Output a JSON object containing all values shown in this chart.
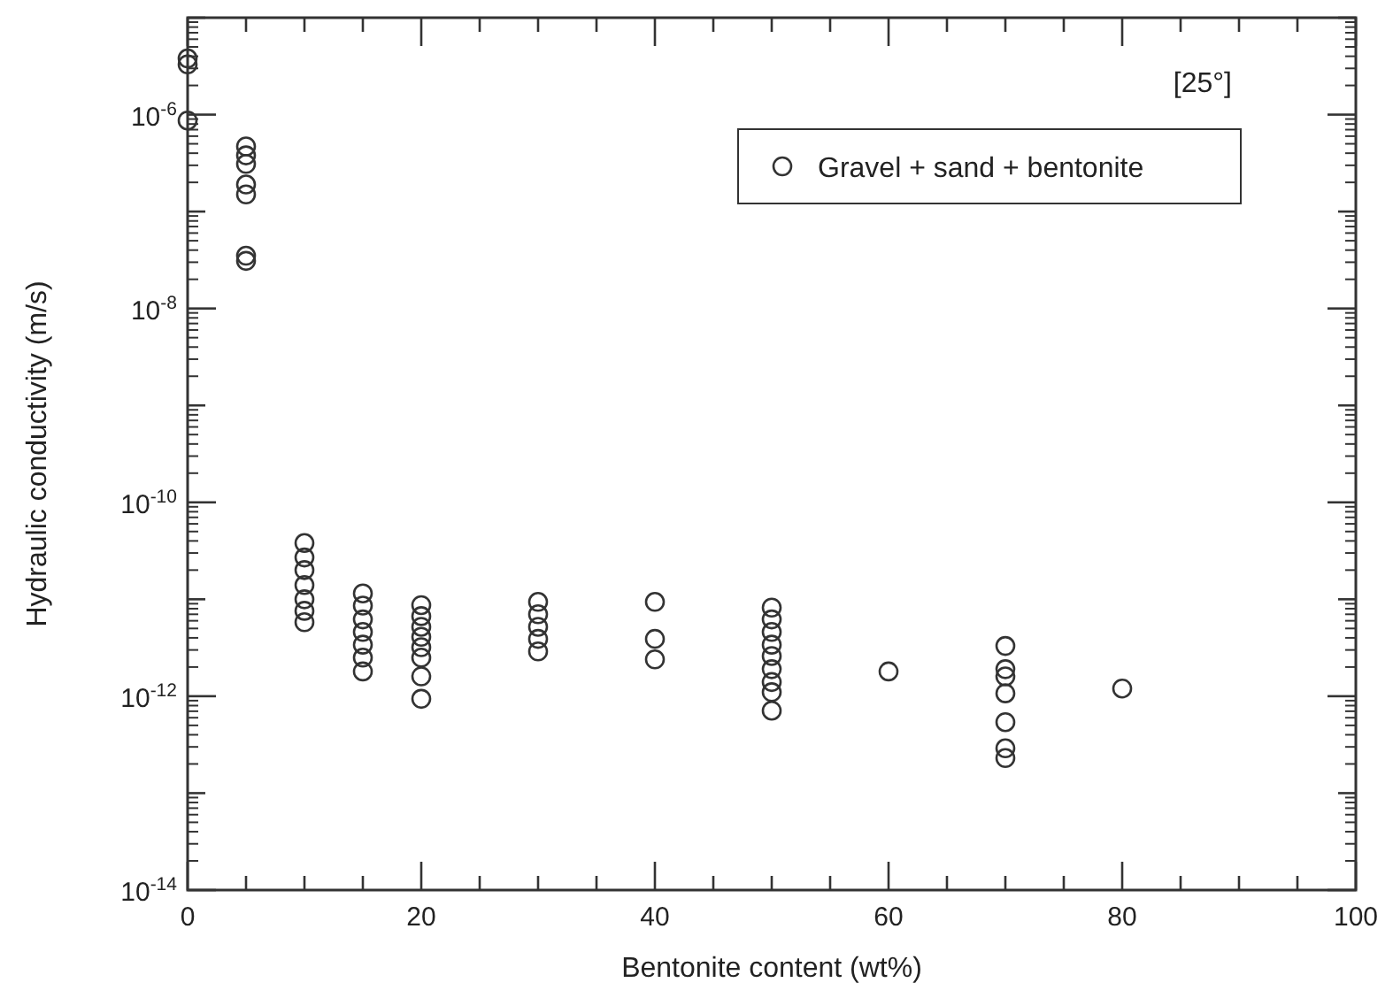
{
  "chart_data": {
    "type": "scatter",
    "xlabel": "Bentonite content (wt%)",
    "ylabel": "Hydraulic conductivity (m/s)",
    "annotations": [
      "[25°]"
    ],
    "log": "y",
    "grid": false,
    "legend": "top right",
    "marker": "circle",
    "xlim": [
      0,
      100
    ],
    "xticks": [
      0,
      {
        "value": 5,
        "label": null
      },
      {
        "value": 10,
        "label": null
      },
      {
        "value": 15,
        "label": null
      },
      20,
      {
        "value": 25,
        "label": null
      },
      {
        "value": 30,
        "label": null
      },
      {
        "value": 35,
        "label": null
      },
      40,
      {
        "value": 45,
        "label": null
      },
      {
        "value": 50,
        "label": null
      },
      {
        "value": 55,
        "label": null
      },
      60,
      {
        "value": 65,
        "label": null
      },
      {
        "value": 70,
        "label": null
      },
      {
        "value": 75,
        "label": null
      },
      80,
      {
        "value": 85,
        "label": null
      },
      {
        "value": 90,
        "label": null
      },
      {
        "value": 95,
        "label": null
      },
      100
    ],
    "ylim": [
      1e-14,
      1e-05
    ],
    "yticks": [
      {
        "value": 1e-14,
        "label": "10$^{-14}$"
      },
      {
        "value": 1e-13,
        "label": null
      },
      {
        "value": 1e-12,
        "label": "10$^{-12}$"
      },
      {
        "value": 1e-11,
        "label": null
      },
      {
        "value": 1e-10,
        "label": "10$^{-10}$"
      },
      {
        "value": 1e-09,
        "label": null
      },
      {
        "value": 1e-08,
        "label": "10$^{-8}$"
      },
      {
        "value": 1e-07,
        "label": null
      },
      {
        "value": 1e-06,
        "label": "10$^{-6}$"
      },
      {
        "value": 1e-05,
        "label": null
      }
    ],
    "series": [
      {
        "name": "Gravel + sand + bentonite",
        "color": "#333333",
        "x": [
          0,
          0,
          0,
          5,
          5,
          5,
          5,
          5,
          5,
          5,
          10,
          10,
          10,
          10,
          10,
          10,
          10,
          15,
          15,
          15,
          15,
          15,
          15,
          15,
          20,
          20,
          20,
          20,
          20,
          20,
          20,
          20,
          30,
          30,
          30,
          30,
          30,
          40,
          40,
          40,
          50,
          50,
          50,
          50,
          50,
          50,
          50,
          50,
          50,
          60,
          70,
          70,
          70,
          70,
          70,
          70,
          70,
          80
        ],
        "values": [
          3.8e-06,
          3.3e-06,
          8.7e-07,
          4.7e-07,
          3.8e-07,
          3.1e-07,
          1.9e-07,
          1.5e-07,
          3.5e-08,
          3.1e-08,
          3.8e-11,
          2.7e-11,
          2e-11,
          1.4e-11,
          1e-11,
          7.6e-12,
          5.8e-12,
          1.15e-11,
          8.6e-12,
          6.2e-12,
          4.6e-12,
          3.4e-12,
          2.5e-12,
          1.8e-12,
          8.7e-12,
          6.7e-12,
          5.2e-12,
          4.1e-12,
          3.2e-12,
          2.5e-12,
          1.6e-12,
          9.4e-13,
          9.4e-12,
          7e-12,
          5.2e-12,
          3.9e-12,
          2.9e-12,
          9.4e-12,
          3.9e-12,
          2.4e-12,
          8.2e-12,
          6.2e-12,
          4.6e-12,
          3.4e-12,
          2.6e-12,
          1.9e-12,
          1.4e-12,
          1.1e-12,
          7.1e-13,
          1.8e-12,
          3.3e-12,
          1.9e-12,
          1.6e-12,
          1.07e-12,
          5.4e-13,
          2.9e-13,
          2.3e-13,
          1.2e-12
        ]
      }
    ]
  }
}
